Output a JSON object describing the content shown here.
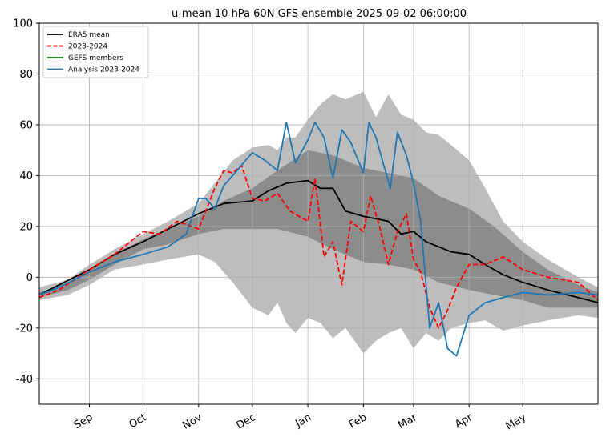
{
  "chart_data": {
    "type": "line",
    "title": "u-mean 10 hPa 60N GFS ensemble 2025-09-02 06:00:00",
    "xlabel": "",
    "ylabel": "",
    "xlim": [
      "2025-08-04",
      "2026-06-12"
    ],
    "ylim": [
      -50,
      100
    ],
    "yticks": [
      -40,
      -20,
      0,
      20,
      40,
      60,
      80,
      100
    ],
    "xticks": [
      {
        "date": "2025-09-01",
        "label": "Sep"
      },
      {
        "date": "2025-10-01",
        "label": "Oct"
      },
      {
        "date": "2025-11-01",
        "label": "Nov"
      },
      {
        "date": "2025-12-01",
        "label": "Dec"
      },
      {
        "date": "2026-01-01",
        "label": "Jan"
      },
      {
        "date": "2026-02-01",
        "label": "Feb"
      },
      {
        "date": "2026-03-01",
        "label": "Mar"
      },
      {
        "date": "2026-04-01",
        "label": "Apr"
      },
      {
        "date": "2026-05-01",
        "label": "May"
      }
    ],
    "grid": true,
    "legend_position": "top-left",
    "colors": {
      "era5_mean": "#000000",
      "season_2023_2024": "#ff0000",
      "gefs_members": "#008000",
      "analysis_2023_2024": "#1f77b4",
      "outer_band": "#bdbdbd",
      "inner_band": "#8c8c8c"
    },
    "legend": [
      {
        "key": "era5_mean",
        "label": "ERA5 mean",
        "style": "solid"
      },
      {
        "key": "season_2023_2024",
        "label": "2023-2024",
        "style": "dashed"
      },
      {
        "key": "gefs_members",
        "label": "GEFS members",
        "style": "solid"
      },
      {
        "key": "analysis_2023_2024",
        "label": "Analysis 2023-2024",
        "style": "solid"
      }
    ],
    "bands": [
      {
        "key": "outer_band",
        "x": [
          "2025-08-04",
          "2025-08-20",
          "2025-09-01",
          "2025-09-15",
          "2025-10-01",
          "2025-10-15",
          "2025-11-01",
          "2025-11-10",
          "2025-11-20",
          "2025-12-01",
          "2025-12-10",
          "2025-12-15",
          "2025-12-20",
          "2025-12-25",
          "2026-01-01",
          "2026-01-08",
          "2026-01-15",
          "2026-01-22",
          "2026-02-01",
          "2026-02-08",
          "2026-02-15",
          "2026-02-22",
          "2026-03-01",
          "2026-03-08",
          "2026-03-15",
          "2026-03-22",
          "2026-04-01",
          "2026-04-10",
          "2026-04-20",
          "2026-05-01",
          "2026-05-15",
          "2026-06-01",
          "2026-06-12"
        ],
        "upper": [
          -4,
          -1,
          5,
          11,
          17,
          22,
          29,
          37,
          46,
          51,
          52,
          50,
          55,
          55,
          62,
          68,
          72,
          70,
          73,
          63,
          72,
          64,
          62,
          57,
          56,
          52,
          46,
          35,
          22,
          14,
          7,
          0,
          -4
        ],
        "lower": [
          -9,
          -7,
          -3,
          3,
          5,
          7,
          9,
          6,
          -2,
          -12,
          -15,
          -10,
          -18,
          -22,
          -16,
          -18,
          -24,
          -20,
          -30,
          -25,
          -22,
          -20,
          -28,
          -22,
          -25,
          -20,
          -18,
          -17,
          -21,
          -19,
          -17,
          -15,
          -16
        ]
      },
      {
        "key": "inner_band",
        "x": [
          "2025-08-04",
          "2025-08-20",
          "2025-09-01",
          "2025-09-15",
          "2025-10-01",
          "2025-10-15",
          "2025-11-01",
          "2025-11-15",
          "2025-12-01",
          "2025-12-15",
          "2026-01-01",
          "2026-01-15",
          "2026-02-01",
          "2026-02-15",
          "2026-03-01",
          "2026-03-15",
          "2026-04-01",
          "2026-04-15",
          "2026-05-01",
          "2026-05-15",
          "2026-06-01",
          "2026-06-12"
        ],
        "upper": [
          -6,
          -2,
          3,
          9,
          15,
          19,
          24,
          30,
          35,
          42,
          50,
          48,
          43,
          41,
          39,
          32,
          27,
          20,
          10,
          3,
          -3,
          -6
        ],
        "lower": [
          -8,
          -5,
          -1,
          5,
          11,
          13,
          17,
          19,
          19,
          19,
          16,
          11,
          6,
          5,
          3,
          -2,
          -5,
          -7,
          -9,
          -12,
          -12,
          -12
        ]
      }
    ],
    "series": [
      {
        "key": "era5_mean",
        "name": "ERA5 mean",
        "x": [
          "2025-08-04",
          "2025-08-15",
          "2025-09-01",
          "2025-09-15",
          "2025-10-01",
          "2025-10-15",
          "2025-11-01",
          "2025-11-15",
          "2025-12-01",
          "2025-12-10",
          "2025-12-20",
          "2026-01-01",
          "2026-01-08",
          "2026-01-15",
          "2026-01-22",
          "2026-02-01",
          "2026-02-08",
          "2026-02-15",
          "2026-02-22",
          "2026-03-01",
          "2026-03-08",
          "2026-03-15",
          "2026-03-22",
          "2026-04-01",
          "2026-04-10",
          "2026-04-20",
          "2026-05-01",
          "2026-05-15",
          "2026-06-01",
          "2026-06-12"
        ],
        "values": [
          -7,
          -3,
          3,
          9,
          14,
          19,
          25,
          29,
          30,
          34,
          37,
          38,
          35,
          35,
          26,
          24,
          23,
          22,
          17,
          18,
          14,
          12,
          10,
          9,
          5,
          1,
          -2,
          -5,
          -8,
          -10
        ]
      },
      {
        "key": "season_2023_2024",
        "name": "2023-2024",
        "x": [
          "2025-08-04",
          "2025-08-15",
          "2025-09-01",
          "2025-09-15",
          "2025-10-01",
          "2025-10-10",
          "2025-10-20",
          "2025-11-01",
          "2025-11-10",
          "2025-11-15",
          "2025-11-20",
          "2025-11-25",
          "2025-12-01",
          "2025-12-08",
          "2025-12-15",
          "2025-12-22",
          "2026-01-01",
          "2026-01-05",
          "2026-01-10",
          "2026-01-15",
          "2026-01-20",
          "2026-01-25",
          "2026-02-01",
          "2026-02-05",
          "2026-02-10",
          "2026-02-15",
          "2026-02-20",
          "2026-02-25",
          "2026-03-01",
          "2026-03-05",
          "2026-03-10",
          "2026-03-15",
          "2026-03-20",
          "2026-03-25",
          "2026-04-01",
          "2026-04-10",
          "2026-04-20",
          "2026-05-01",
          "2026-05-15",
          "2026-06-01",
          "2026-06-12"
        ],
        "values": [
          -8,
          -5,
          3,
          9,
          18,
          17,
          22,
          19,
          35,
          42,
          41,
          44,
          31,
          30,
          33,
          26,
          22,
          39,
          8,
          14,
          -3,
          22,
          18,
          32,
          20,
          5,
          18,
          25,
          7,
          2,
          -12,
          -20,
          -13,
          -4,
          5,
          5,
          8,
          3,
          0,
          -2,
          -9
        ]
      },
      {
        "key": "analysis_2023_2024",
        "name": "Analysis 2023-2024",
        "x": [
          "2025-08-04",
          "2025-08-15",
          "2025-09-01",
          "2025-09-15",
          "2025-10-01",
          "2025-10-15",
          "2025-10-25",
          "2025-11-01",
          "2025-11-05",
          "2025-11-10",
          "2025-11-15",
          "2025-11-20",
          "2025-12-01",
          "2025-12-08",
          "2025-12-15",
          "2025-12-20",
          "2025-12-25",
          "2026-01-01",
          "2026-01-05",
          "2026-01-10",
          "2026-01-15",
          "2026-01-20",
          "2026-01-25",
          "2026-02-01",
          "2026-02-04",
          "2026-02-08",
          "2026-02-12",
          "2026-02-16",
          "2026-02-20",
          "2026-02-25",
          "2026-03-01",
          "2026-03-05",
          "2026-03-10",
          "2026-03-15",
          "2026-03-20",
          "2026-03-25",
          "2026-04-01",
          "2026-04-10",
          "2026-04-20",
          "2026-05-01",
          "2026-05-15",
          "2026-06-01",
          "2026-06-12"
        ],
        "values": [
          -7,
          -4,
          2,
          6,
          9,
          12,
          17,
          31,
          31,
          27,
          36,
          40,
          49,
          46,
          42,
          61,
          45,
          54,
          61,
          55,
          39,
          58,
          53,
          41,
          61,
          55,
          45,
          35,
          57,
          48,
          37,
          22,
          -20,
          -10,
          -28,
          -31,
          -15,
          -10,
          -8,
          -6,
          -7,
          -6,
          -7
        ]
      }
    ]
  }
}
